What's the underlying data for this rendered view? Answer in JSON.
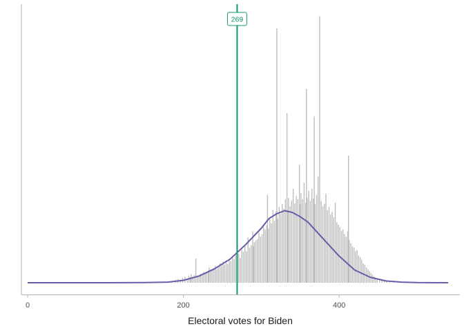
{
  "chart_data": {
    "type": "bar",
    "title": "",
    "xlabel": "Electoral votes for Biden",
    "ylabel": "",
    "xlim": [
      -8,
      555
    ],
    "x_ticks": [
      0,
      200,
      400
    ],
    "x_tick_labels": [
      "0",
      "200",
      "400"
    ],
    "y_ticks_shown": false,
    "grid": false,
    "legend": "none",
    "bar_color": "#bdbdbd",
    "series": [
      {
        "kind": "histogram-spikes",
        "x": [
          185,
          190,
          193,
          196,
          199,
          202,
          205,
          207,
          209,
          210,
          212,
          214,
          216,
          218,
          220,
          222,
          224,
          226,
          228,
          230,
          232,
          233,
          235,
          237,
          239,
          241,
          243,
          245,
          247,
          249,
          251,
          253,
          255,
          257,
          259,
          261,
          263,
          265,
          267,
          269,
          271,
          273,
          275,
          277,
          279,
          281,
          283,
          285,
          287,
          289,
          290,
          291,
          293,
          295,
          297,
          299,
          301,
          303,
          305,
          307,
          308,
          309,
          311,
          313,
          315,
          317,
          319,
          320,
          321,
          323,
          325,
          327,
          329,
          331,
          333,
          334,
          335,
          337,
          339,
          341,
          343,
          345,
          347,
          349,
          350,
          351,
          353,
          355,
          357,
          358,
          359,
          361,
          363,
          365,
          367,
          368,
          369,
          371,
          373,
          375,
          377,
          379,
          381,
          383,
          385,
          387,
          389,
          391,
          393,
          395,
          397,
          399,
          401,
          403,
          405,
          407,
          409,
          411,
          412,
          413,
          415,
          417,
          419,
          421,
          423,
          425,
          427,
          429,
          431,
          433,
          435,
          437,
          439,
          441,
          443,
          445,
          447,
          449,
          452,
          455,
          458,
          461,
          465,
          470
        ],
        "values": [
          0.3,
          0.5,
          0.6,
          0.5,
          0.8,
          1.0,
          0.7,
          1.2,
          0.9,
          1.4,
          1.0,
          1.3,
          4.0,
          1.2,
          1.1,
          1.5,
          1.4,
          1.8,
          1.5,
          1.7,
          2.0,
          2.5,
          2.2,
          2.1,
          2.4,
          2.8,
          2.3,
          2.6,
          3.2,
          2.8,
          3.5,
          3.0,
          3.3,
          3.1,
          3.8,
          3.6,
          4.2,
          3.9,
          4.5,
          3.8,
          4.8,
          4.1,
          5.5,
          5.1,
          6.0,
          5.2,
          7.5,
          5.8,
          6.2,
          8.5,
          6.0,
          6.7,
          7.0,
          7.2,
          8.3,
          7.6,
          8.0,
          9.2,
          8.8,
          9.5,
          14.5,
          9.0,
          10.5,
          9.8,
          12.0,
          10.2,
          11.8,
          42.0,
          10.6,
          12.5,
          11.4,
          13.0,
          12.2,
          13.8,
          28.0,
          12.0,
          14.0,
          12.6,
          13.6,
          15.5,
          13.1,
          14.3,
          13.8,
          19.5,
          13.0,
          14.8,
          13.8,
          16.5,
          13.2,
          32.0,
          14.0,
          15.2,
          13.5,
          15.5,
          13.9,
          27.5,
          13.0,
          14.5,
          17.5,
          44.0,
          13.5,
          12.6,
          13.0,
          14.7,
          12.0,
          12.5,
          11.3,
          11.7,
          10.8,
          13.2,
          10.0,
          9.6,
          9.2,
          8.6,
          8.8,
          8.0,
          7.6,
          8.5,
          21.0,
          7.0,
          6.5,
          6.0,
          5.8,
          5.2,
          5.4,
          4.5,
          4.2,
          3.8,
          3.2,
          3.0,
          2.5,
          2.2,
          1.9,
          1.6,
          1.3,
          1.0,
          0.8,
          0.7,
          0.5,
          0.4,
          0.3,
          0.2,
          0.2,
          0.1
        ]
      },
      {
        "name": "",
        "kind": "density-line",
        "color": "#6a5aa8",
        "x": [
          0,
          50,
          100,
          150,
          180,
          200,
          220,
          240,
          260,
          280,
          300,
          310,
          320,
          330,
          340,
          350,
          360,
          380,
          400,
          420,
          440,
          460,
          480,
          500,
          540
        ],
        "values": [
          0,
          0,
          0,
          0.02,
          0.1,
          0.4,
          1.1,
          2.3,
          3.9,
          6.3,
          9.0,
          10.6,
          11.4,
          11.9,
          11.6,
          10.9,
          10.0,
          7.2,
          4.4,
          2.1,
          0.9,
          0.3,
          0.1,
          0.02,
          0
        ]
      }
    ],
    "reference_line": {
      "x": 269,
      "label": "269",
      "color": "#12946b"
    },
    "ylim": [
      0,
      46
    ]
  }
}
